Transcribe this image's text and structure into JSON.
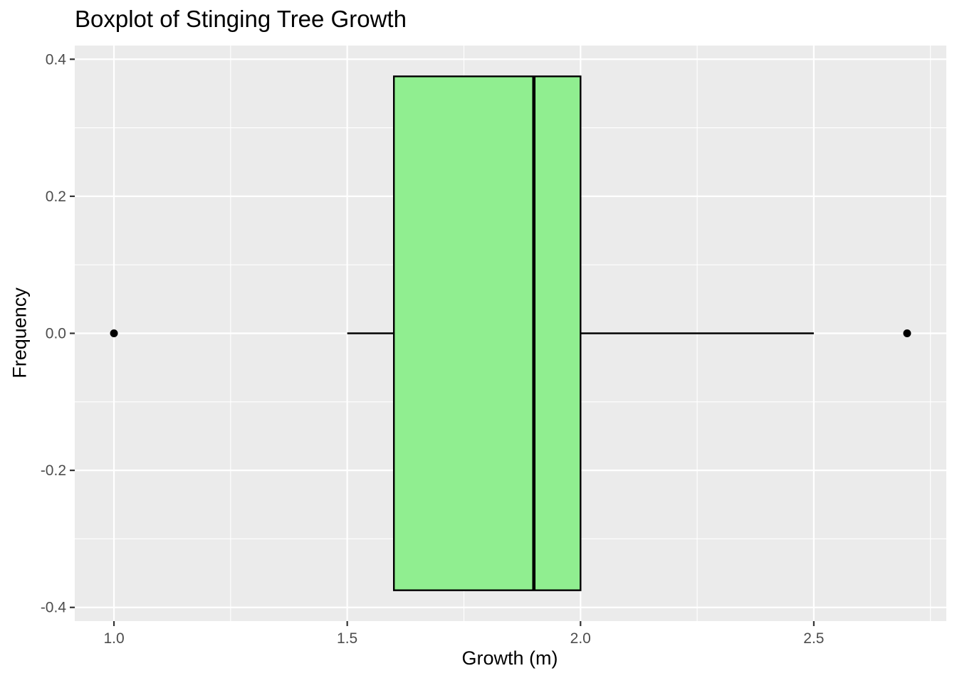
{
  "chart_data": {
    "type": "boxplot",
    "title": "Boxplot of Stinging Tree Growth",
    "xlabel": "Growth (m)",
    "ylabel": "Frequency",
    "xlim": [
      0.916,
      2.784
    ],
    "ylim": [
      -0.42,
      0.42
    ],
    "x_ticks": [
      1.0,
      1.5,
      2.0,
      2.5
    ],
    "x_tick_labels": [
      "1.0",
      "1.5",
      "2.0",
      "2.5"
    ],
    "y_ticks": [
      -0.4,
      -0.2,
      0.0,
      0.2,
      0.4
    ],
    "y_tick_labels": [
      "-0.4",
      "-0.2",
      "0.0",
      "0.2",
      "0.4"
    ],
    "grid": true,
    "box": {
      "whisker_low": 1.5,
      "q1": 1.6,
      "median": 1.9,
      "q3": 2.0,
      "whisker_high": 2.5,
      "box_y_range": [
        -0.375,
        0.375
      ],
      "center_y": 0.0
    },
    "outliers": [
      {
        "x": 1.0,
        "y": 0.0
      },
      {
        "x": 2.7,
        "y": 0.0
      }
    ],
    "colors": {
      "box_fill": "#90EE90",
      "box_stroke": "#000000",
      "panel_background": "#EBEBEB",
      "grid": "#FFFFFF",
      "outlier": "#000000"
    }
  }
}
